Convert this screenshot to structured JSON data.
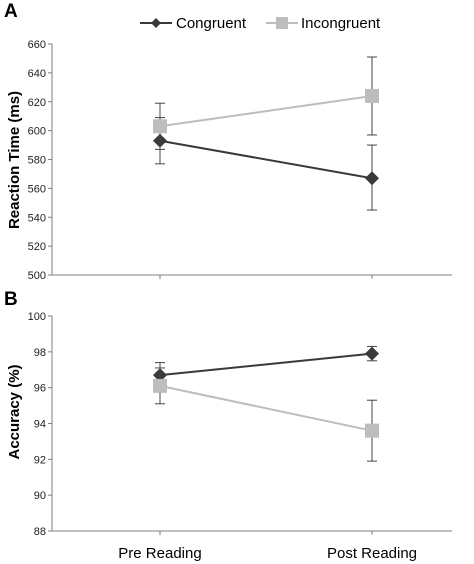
{
  "panels": {
    "a": "A",
    "b": "B"
  },
  "legend": {
    "congruent": "Congruent",
    "incongruent": "Incongruent"
  },
  "colors": {
    "congruent": "#3a3a3a",
    "incongruent": "#bdbdbd",
    "axis": "#7f7f7f",
    "error": "#444444"
  },
  "chart_data": [
    {
      "type": "line",
      "ylabel": "Reaction Time (ms)",
      "ylim": [
        500,
        660
      ],
      "yticks": [
        "500",
        "520",
        "540",
        "560",
        "580",
        "600",
        "620",
        "640",
        "660"
      ],
      "categories": [
        "Pre Reading",
        "Post Reading"
      ],
      "series": [
        {
          "name": "Congruent",
          "marker": "diamond",
          "values": [
            593,
            567
          ],
          "err_low": [
            577,
            545
          ],
          "err_high": [
            609,
            590
          ]
        },
        {
          "name": "Incongruent",
          "marker": "square",
          "values": [
            603,
            624
          ],
          "err_low": [
            587,
            597
          ],
          "err_high": [
            619,
            651
          ]
        }
      ]
    },
    {
      "type": "line",
      "ylabel": "Accuracy (%)",
      "ylim": [
        88,
        100
      ],
      "yticks": [
        "88",
        "90",
        "92",
        "94",
        "96",
        "98",
        "100"
      ],
      "categories": [
        "Pre Reading",
        "Post Reading"
      ],
      "series": [
        {
          "name": "Congruent",
          "marker": "diamond",
          "values": [
            96.7,
            97.9
          ],
          "err_low": [
            96.0,
            97.5
          ],
          "err_high": [
            97.4,
            98.3
          ]
        },
        {
          "name": "Incongruent",
          "marker": "square",
          "values": [
            96.1,
            93.6
          ],
          "err_low": [
            95.1,
            91.9
          ],
          "err_high": [
            97.1,
            95.3
          ]
        }
      ]
    }
  ]
}
